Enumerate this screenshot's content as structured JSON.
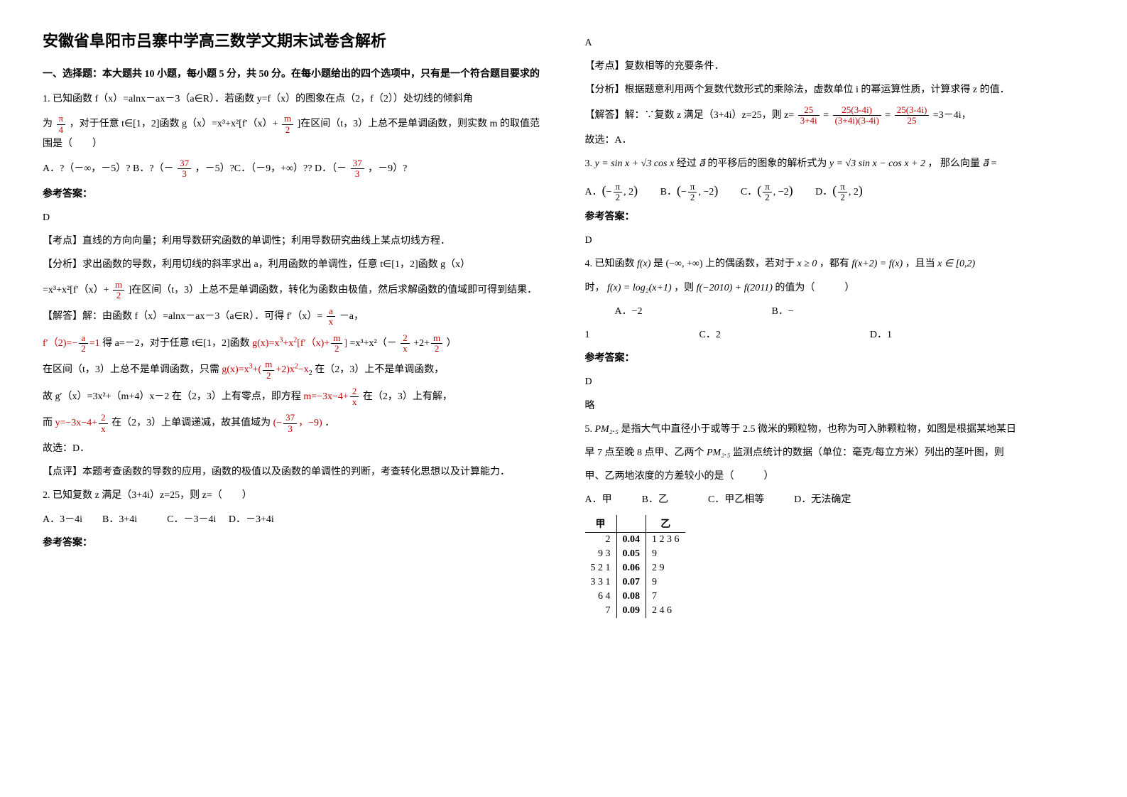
{
  "title": "安徽省阜阳市吕寨中学高三数学文期末试卷含解析",
  "section1_title": "一、选择题：本大题共 10 小题，每小题 5 分，共 50 分。在每小题给出的四个选项中，只有是一个符合题目要求的",
  "q1": {
    "stem1": "1. 已知函数 f（x）=alnx－ax－3（a∈R）．若函数 y=f（x）的图象在点（2，f（2））处切线的倾斜角",
    "stem2": "为",
    "stem3": "，对于任意 t∈[1，2]函数 g（x）=x³+x²[f′（x）+",
    "stem4": "]在区间（t，3）上总不是单调函数，则实数 m 的取值范围是（　　）",
    "optA_pre": "A．?（－∞，－5）?",
    "optB_pre": "B．?（－",
    "optB_post": "，－5）?C．（－9，+∞）??",
    "optD_pre": "D．（－",
    "optD_post": "，－9）?",
    "answer_label": "参考答案：",
    "answer": "D",
    "kaodian": "【考点】直线的方向向量；利用导数研究函数的单调性；利用导数研究曲线上某点切线方程．",
    "fenxi1": "【分析】求出函数的导数，利用切线的斜率求出 a，利用函数的单调性，任意 t∈[1，2]函数 g（x）",
    "fenxi2_pre": "=x³+x²[f′（x）+",
    "fenxi2_post": "]在区间（t，3）上总不是单调函数，转化为函数由极值，然后求解函数的值域即可得到结果．",
    "jieda1_pre": "【解答】解：由函数 f（x）=alnx－ax－3（a∈R）．可得 f′（x）=",
    "jieda1_post": "－a，",
    "jieda2": "得 a=－2，对于任意 t∈[1，2]函数",
    "jieda2_g": "=x³+x²（－",
    "jieda2_end": "）",
    "jieda3_pre": "在区间（t，3）上总不是单调函数，只需",
    "jieda3_post": "在（2，3）上不是单调函数，",
    "jieda4_pre": "故 g′（x）=3x²+（m+4）x－2 在（2，3）上有零点，即方程",
    "jieda4_post": "在（2，3）上有解，",
    "jieda5_pre": "而",
    "jieda5_mid": "在（2，3）上单调递减，故其值域为",
    "jieda5_post": "．",
    "jieda6": "故选：D．",
    "dianping": "【点评】本题考查函数的导数的应用，函数的极值以及函数的单调性的判断，考查转化思想以及计算能力．",
    "frac_pi4_num": "π",
    "frac_pi4_den": "4",
    "frac_m2_num": "m",
    "frac_m2_den": "2",
    "frac_37_3_num": "37",
    "frac_37_3_den": "3",
    "frac_a_x_num": "a",
    "frac_a_x_den": "x",
    "frac_2_x_num": "2",
    "frac_2_x_den": "x"
  },
  "q2": {
    "stem": "2. 已知复数 z 满足（3+4i）z=25，则 z=（　　）",
    "opts": "A．3－4i　　B．3+4i　　　C．－3－4i　 D．－3+4i",
    "answer_label": "参考答案：",
    "answer": "A",
    "kaodian": "【考点】复数相等的充要条件．",
    "fenxi": "【分析】根据题意利用两个复数代数形式的乘除法，虚数单位 i 的幂运算性质，计算求得 z 的值．",
    "jieda_pre": "【解答】解：∵复数 z 满足（3+4i）z=25，则 z=",
    "jieda_eq": "=",
    "jieda_eq2": "=",
    "jieda_post": "=3－4i，",
    "jieda2": "故选：A．",
    "frac1_num": "25",
    "frac1_den": "3+4i",
    "frac2_num": "25(3-4i)",
    "frac2_den": "(3+4i)(3-4i)",
    "frac3_num": "25(3-4i)",
    "frac3_den": "25"
  },
  "q3": {
    "stem_pre": "3. ",
    "stem_f1": "y = sin x + √3 cos x",
    "stem_mid1": " 经过",
    "stem_vec": "a⃗",
    "stem_mid2": " 的平移后的图象的解析式为",
    "stem_f2": "y = √3 sin x − cos x + 2",
    "stem_mid3": "， 那么向量",
    "stem_post": " =",
    "optA_pre": "A．",
    "optB_pre": "　　B．",
    "optC_pre": "　　C．",
    "optD_pre": "　　D．",
    "vecA": "(−π/2, 2)",
    "vecB": "(−π/2, −2)",
    "vecC": "(π/2, −2)",
    "vecD": "(π/2, 2)",
    "answer_label": "参考答案：",
    "answer": "D"
  },
  "q4": {
    "stem1_pre": "4. 已知函数",
    "stem1_f": "f(x)",
    "stem1_mid1": "是",
    "stem1_dom": "(−∞, +∞)",
    "stem1_mid2": "上的偶函数，若对于",
    "stem1_cond1": "x ≥ 0",
    "stem1_mid3": "，都有",
    "stem1_cond2": "f(x+2) = f(x)",
    "stem1_mid4": "，且当",
    "stem1_cond3": "x ∈ [0,2)",
    "stem2_pre": "时，",
    "stem2_f": "f(x) = log₂(x+1)",
    "stem2_mid": "，则",
    "stem2_expr": "f(−2010) + f(2011)",
    "stem2_post": " 的值为（　　　）",
    "opts1": "　　　A．−2　　　　　　　　　　　　　B．−",
    "opts2": "1　　　　　　　　　　　C．2　　　　　　　　　　　　　　　D．1",
    "answer_label": "参考答案：",
    "answer": "D",
    "lue": "略"
  },
  "q5": {
    "stem1_pre": "5. ",
    "stem1_pm": "PM₂.₅",
    "stem1_mid": "是指大气中直径小于或等于 2.5 微米的颗粒物，也称为可入肺颗粒物，如图是根据某地某日",
    "stem2_pre": "早 7 点至晚 8 点甲、乙两个",
    "stem2_post": "监测点统计的数据（单位：毫克/每立方米）列出的茎叶图，则",
    "stem3": "甲、乙两地浓度的方差较小的是（　　　）",
    "opts": "A．甲　　　B．乙　　　　C．甲乙相等　　　D．无法确定",
    "leaf_header_left": "甲",
    "leaf_header_right": "乙",
    "rows": [
      {
        "l": "2",
        "s": "0.04",
        "r": "1  2  3  6"
      },
      {
        "l": "9  3",
        "s": "0.05",
        "r": "9"
      },
      {
        "l": "5  2  1",
        "s": "0.06",
        "r": "2  9"
      },
      {
        "l": "3  3  1",
        "s": "0.07",
        "r": "9"
      },
      {
        "l": "6  4",
        "s": "0.08",
        "r": "7"
      },
      {
        "l": "7",
        "s": "0.09",
        "r": "2  4  6"
      }
    ]
  }
}
